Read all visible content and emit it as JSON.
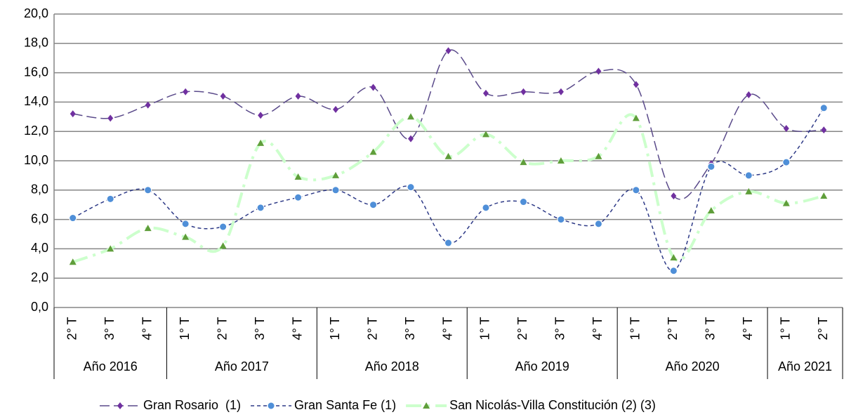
{
  "chart_data": {
    "type": "line",
    "categories": [
      "2° T",
      "3° T",
      "4° T",
      "1° T",
      "2° T",
      "3° T",
      "4° T",
      "1° T",
      "2° T",
      "3° T",
      "4° T",
      "1° T",
      "2° T",
      "3° T",
      "4° T",
      "1° T",
      "2° T",
      "3° T",
      "4° T",
      "1° T",
      "2° T"
    ],
    "groups": [
      {
        "label": "Año 2016",
        "count": 3
      },
      {
        "label": "Año 2017",
        "count": 4
      },
      {
        "label": "Año 2018",
        "count": 4
      },
      {
        "label": "Año 2019",
        "count": 4
      },
      {
        "label": "Año 2020",
        "count": 4
      },
      {
        "label": "Año 2021",
        "count": 2
      }
    ],
    "series": [
      {
        "name": "Gran Rosario  (1)",
        "color": "#7030a0",
        "line_color": "#5a4a8a",
        "marker": "diamond",
        "values": [
          13.2,
          12.9,
          13.8,
          14.7,
          14.4,
          13.1,
          14.4,
          13.5,
          15.0,
          11.5,
          17.5,
          14.6,
          14.7,
          14.7,
          16.1,
          15.2,
          7.6,
          9.8,
          14.5,
          12.2,
          12.1
        ]
      },
      {
        "name": "Gran Santa Fe (1)",
        "color": "#4f8fd8",
        "line_color": "#2e3a87",
        "marker": "circle",
        "values": [
          6.1,
          7.4,
          8.0,
          5.7,
          5.5,
          6.8,
          7.5,
          8.0,
          7.0,
          8.2,
          4.4,
          6.8,
          7.2,
          6.0,
          5.7,
          8.0,
          2.5,
          9.6,
          9.0,
          9.9,
          13.6
        ]
      },
      {
        "name": "San Nicolás-Villa Constitución (2) (3)",
        "color": "#5f9e3a",
        "line_color": "#ccffcc",
        "marker": "triangle",
        "values": [
          3.1,
          4.0,
          5.4,
          4.8,
          4.2,
          11.2,
          8.9,
          9.0,
          10.6,
          13.0,
          10.3,
          11.8,
          9.9,
          10.0,
          10.3,
          12.9,
          3.4,
          6.6,
          7.9,
          7.1,
          7.6
        ]
      }
    ],
    "ylim": [
      0,
      20
    ],
    "yticks": [
      {
        "value": 0,
        "label": "0,0"
      },
      {
        "value": 2,
        "label": "2,0"
      },
      {
        "value": 4,
        "label": "4,0"
      },
      {
        "value": 6,
        "label": "6,0"
      },
      {
        "value": 8,
        "label": "8,0"
      },
      {
        "value": 10,
        "label": "10,0"
      },
      {
        "value": 12,
        "label": "12,0"
      },
      {
        "value": 14,
        "label": "14,0"
      },
      {
        "value": 16,
        "label": "16,0"
      },
      {
        "value": 18,
        "label": "18,0"
      },
      {
        "value": 20,
        "label": "20,0"
      }
    ],
    "grid": true,
    "legend": "bottom"
  }
}
